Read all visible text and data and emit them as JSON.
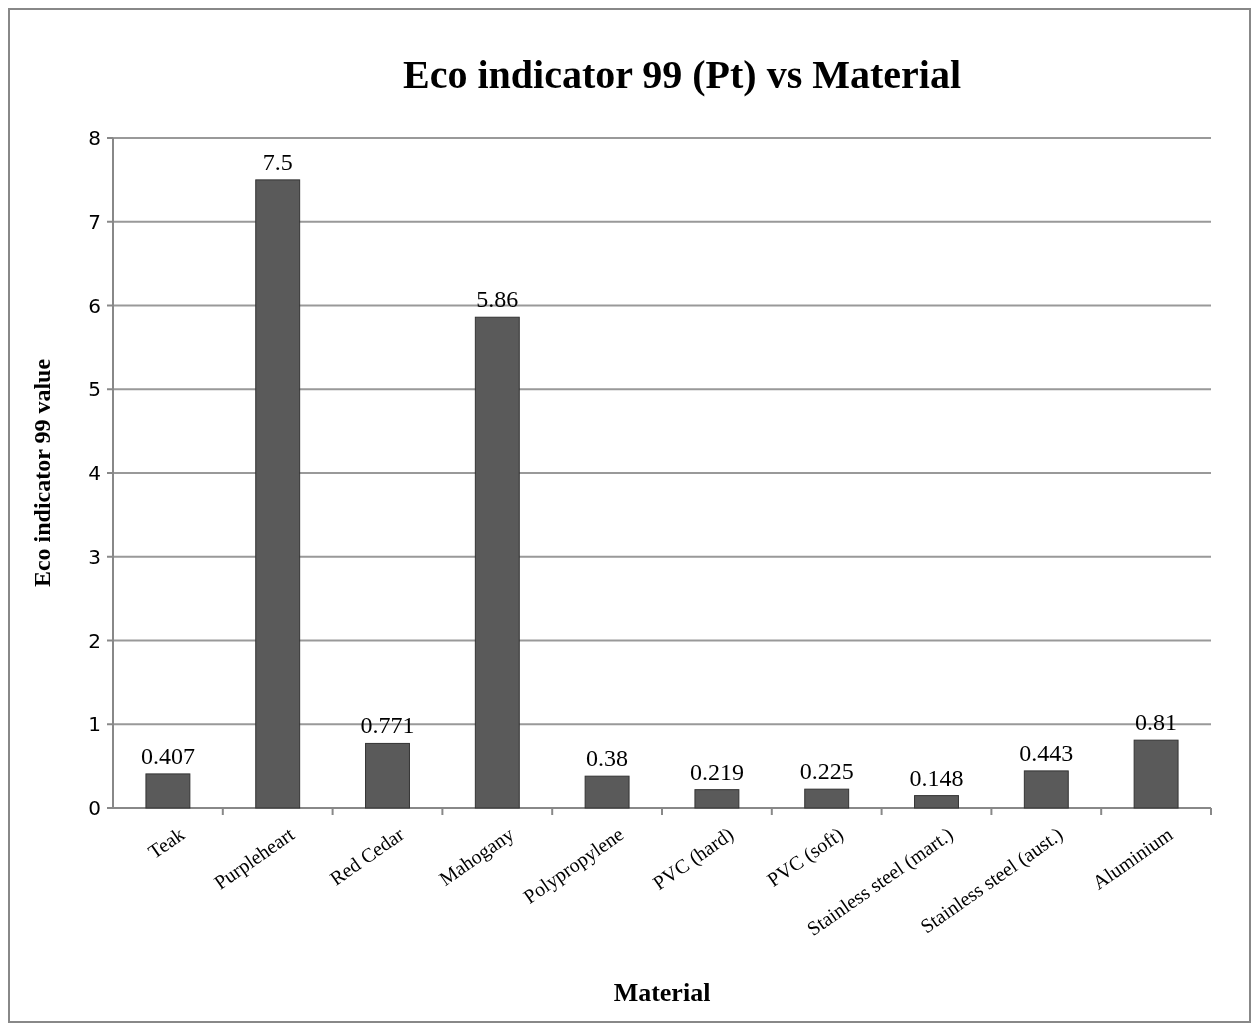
{
  "chart_data": {
    "type": "bar",
    "title": "Eco indicator 99 (Pt) vs Material",
    "xlabel": "Material",
    "ylabel": "Eco indicator 99 value",
    "categories": [
      "Teak",
      "Purpleheart",
      "Red Cedar",
      "Mahogany",
      "Polypropylene",
      "PVC (hard)",
      "PVC (soft)",
      "Stainless steel (mart.)",
      "Stainless steel (aust.)",
      "Aluminium"
    ],
    "values": [
      0.407,
      7.5,
      0.771,
      5.86,
      0.38,
      0.219,
      0.225,
      0.148,
      0.443,
      0.81
    ],
    "color": "#5a5a5a",
    "ylim": [
      0,
      8
    ],
    "yticks": [
      0,
      1,
      2,
      3,
      4,
      5,
      6,
      7,
      8
    ],
    "grid": "y",
    "data_labels": true
  }
}
